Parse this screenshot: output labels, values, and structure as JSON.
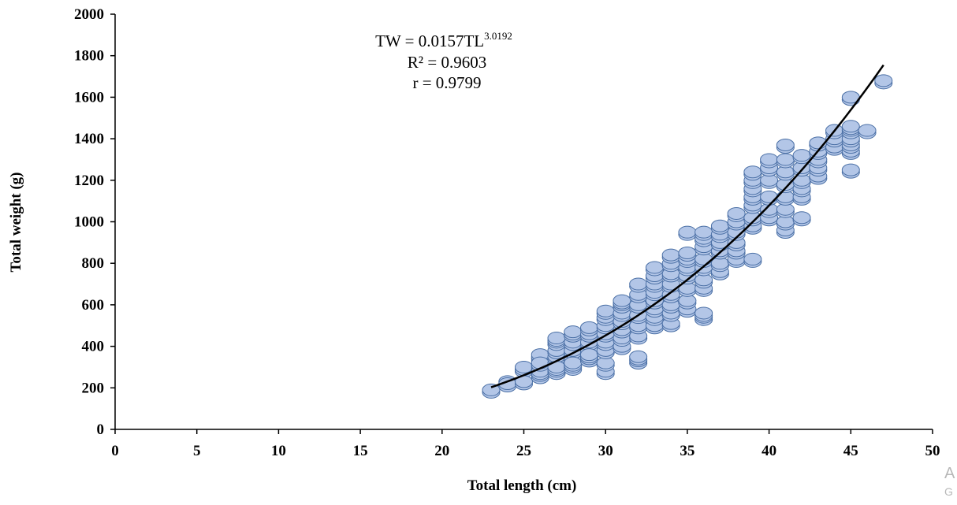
{
  "chart_data": {
    "type": "scatter",
    "title": "",
    "xlabel": "Total length (cm)",
    "ylabel": "Total weight (g)",
    "xlim": [
      0,
      50
    ],
    "ylim": [
      0,
      2000
    ],
    "x_ticks": [
      "0",
      "5",
      "10",
      "15",
      "20",
      "25",
      "30",
      "35",
      "40",
      "45",
      "50"
    ],
    "y_ticks": [
      "0",
      "200",
      "400",
      "600",
      "800",
      "1000",
      "1200",
      "1400",
      "1600",
      "1800",
      "2000"
    ],
    "grid": false,
    "legend": "none",
    "marker_fill": "#b3c6e7",
    "marker_edge": "#4a6fa5",
    "trend_color": "#000000",
    "equation": {
      "prefix": "TW = 0.0157TL",
      "exponent": "3.0192",
      "r2": "R² = 0.9603",
      "r": "r = 0.9799"
    },
    "trendline": {
      "type": "power",
      "a": 0.0157,
      "b": 3.0192,
      "x_range": [
        23,
        47
      ]
    },
    "points": [
      {
        "x": 23,
        "y": 190
      },
      {
        "x": 24,
        "y": 230
      },
      {
        "x": 24,
        "y": 220
      },
      {
        "x": 25,
        "y": 290
      },
      {
        "x": 25,
        "y": 230
      },
      {
        "x": 25,
        "y": 300
      },
      {
        "x": 26,
        "y": 260
      },
      {
        "x": 26,
        "y": 300
      },
      {
        "x": 26,
        "y": 340
      },
      {
        "x": 26,
        "y": 360
      },
      {
        "x": 26,
        "y": 280
      },
      {
        "x": 26,
        "y": 320
      },
      {
        "x": 27,
        "y": 280
      },
      {
        "x": 27,
        "y": 320
      },
      {
        "x": 27,
        "y": 350
      },
      {
        "x": 27,
        "y": 380
      },
      {
        "x": 27,
        "y": 420
      },
      {
        "x": 27,
        "y": 440
      },
      {
        "x": 27,
        "y": 300
      },
      {
        "x": 28,
        "y": 300
      },
      {
        "x": 28,
        "y": 340
      },
      {
        "x": 28,
        "y": 380
      },
      {
        "x": 28,
        "y": 420
      },
      {
        "x": 28,
        "y": 460
      },
      {
        "x": 28,
        "y": 470
      },
      {
        "x": 28,
        "y": 320
      },
      {
        "x": 29,
        "y": 340
      },
      {
        "x": 29,
        "y": 380
      },
      {
        "x": 29,
        "y": 420
      },
      {
        "x": 29,
        "y": 460
      },
      {
        "x": 29,
        "y": 490
      },
      {
        "x": 29,
        "y": 360
      },
      {
        "x": 30,
        "y": 280
      },
      {
        "x": 30,
        "y": 320
      },
      {
        "x": 30,
        "y": 380
      },
      {
        "x": 30,
        "y": 420
      },
      {
        "x": 30,
        "y": 460
      },
      {
        "x": 30,
        "y": 500
      },
      {
        "x": 30,
        "y": 540
      },
      {
        "x": 30,
        "y": 570
      },
      {
        "x": 31,
        "y": 400
      },
      {
        "x": 31,
        "y": 440
      },
      {
        "x": 31,
        "y": 480
      },
      {
        "x": 31,
        "y": 520
      },
      {
        "x": 31,
        "y": 560
      },
      {
        "x": 31,
        "y": 600
      },
      {
        "x": 31,
        "y": 620
      },
      {
        "x": 32,
        "y": 330
      },
      {
        "x": 32,
        "y": 350
      },
      {
        "x": 32,
        "y": 450
      },
      {
        "x": 32,
        "y": 500
      },
      {
        "x": 32,
        "y": 550
      },
      {
        "x": 32,
        "y": 600
      },
      {
        "x": 32,
        "y": 650
      },
      {
        "x": 32,
        "y": 700
      },
      {
        "x": 33,
        "y": 500
      },
      {
        "x": 33,
        "y": 540
      },
      {
        "x": 33,
        "y": 580
      },
      {
        "x": 33,
        "y": 620
      },
      {
        "x": 33,
        "y": 660
      },
      {
        "x": 33,
        "y": 700
      },
      {
        "x": 33,
        "y": 740
      },
      {
        "x": 33,
        "y": 780
      },
      {
        "x": 34,
        "y": 510
      },
      {
        "x": 34,
        "y": 560
      },
      {
        "x": 34,
        "y": 600
      },
      {
        "x": 34,
        "y": 650
      },
      {
        "x": 34,
        "y": 700
      },
      {
        "x": 34,
        "y": 750
      },
      {
        "x": 34,
        "y": 800
      },
      {
        "x": 34,
        "y": 840
      },
      {
        "x": 35,
        "y": 580
      },
      {
        "x": 35,
        "y": 620
      },
      {
        "x": 35,
        "y": 680
      },
      {
        "x": 35,
        "y": 740
      },
      {
        "x": 35,
        "y": 780
      },
      {
        "x": 35,
        "y": 820
      },
      {
        "x": 35,
        "y": 850
      },
      {
        "x": 35,
        "y": 950
      },
      {
        "x": 36,
        "y": 540
      },
      {
        "x": 36,
        "y": 560
      },
      {
        "x": 36,
        "y": 680
      },
      {
        "x": 36,
        "y": 720
      },
      {
        "x": 36,
        "y": 780
      },
      {
        "x": 36,
        "y": 820
      },
      {
        "x": 36,
        "y": 880
      },
      {
        "x": 36,
        "y": 920
      },
      {
        "x": 36,
        "y": 950
      },
      {
        "x": 37,
        "y": 760
      },
      {
        "x": 37,
        "y": 800
      },
      {
        "x": 37,
        "y": 860
      },
      {
        "x": 37,
        "y": 900
      },
      {
        "x": 37,
        "y": 940
      },
      {
        "x": 37,
        "y": 980
      },
      {
        "x": 38,
        "y": 820
      },
      {
        "x": 38,
        "y": 860
      },
      {
        "x": 38,
        "y": 900
      },
      {
        "x": 38,
        "y": 950
      },
      {
        "x": 38,
        "y": 1000
      },
      {
        "x": 38,
        "y": 1040
      },
      {
        "x": 39,
        "y": 820
      },
      {
        "x": 39,
        "y": 980
      },
      {
        "x": 39,
        "y": 1020
      },
      {
        "x": 39,
        "y": 1080
      },
      {
        "x": 39,
        "y": 1120
      },
      {
        "x": 39,
        "y": 1160
      },
      {
        "x": 39,
        "y": 1200
      },
      {
        "x": 39,
        "y": 1240
      },
      {
        "x": 40,
        "y": 1020
      },
      {
        "x": 40,
        "y": 1060
      },
      {
        "x": 40,
        "y": 1120
      },
      {
        "x": 40,
        "y": 1200
      },
      {
        "x": 40,
        "y": 1260
      },
      {
        "x": 40,
        "y": 1300
      },
      {
        "x": 41,
        "y": 960
      },
      {
        "x": 41,
        "y": 1000
      },
      {
        "x": 41,
        "y": 1060
      },
      {
        "x": 41,
        "y": 1120
      },
      {
        "x": 41,
        "y": 1180
      },
      {
        "x": 41,
        "y": 1240
      },
      {
        "x": 41,
        "y": 1300
      },
      {
        "x": 41,
        "y": 1370
      },
      {
        "x": 42,
        "y": 1020
      },
      {
        "x": 42,
        "y": 1120
      },
      {
        "x": 42,
        "y": 1160
      },
      {
        "x": 42,
        "y": 1200
      },
      {
        "x": 42,
        "y": 1260
      },
      {
        "x": 42,
        "y": 1320
      },
      {
        "x": 43,
        "y": 1220
      },
      {
        "x": 43,
        "y": 1260
      },
      {
        "x": 43,
        "y": 1300
      },
      {
        "x": 43,
        "y": 1340
      },
      {
        "x": 43,
        "y": 1380
      },
      {
        "x": 44,
        "y": 1360
      },
      {
        "x": 44,
        "y": 1400
      },
      {
        "x": 44,
        "y": 1440
      },
      {
        "x": 45,
        "y": 1250
      },
      {
        "x": 45,
        "y": 1340
      },
      {
        "x": 45,
        "y": 1370
      },
      {
        "x": 45,
        "y": 1400
      },
      {
        "x": 45,
        "y": 1440
      },
      {
        "x": 45,
        "y": 1460
      },
      {
        "x": 45,
        "y": 1600
      },
      {
        "x": 46,
        "y": 1440
      },
      {
        "x": 47,
        "y": 1680
      }
    ]
  },
  "watermark": {
    "line1": "A",
    "line2": "G"
  }
}
